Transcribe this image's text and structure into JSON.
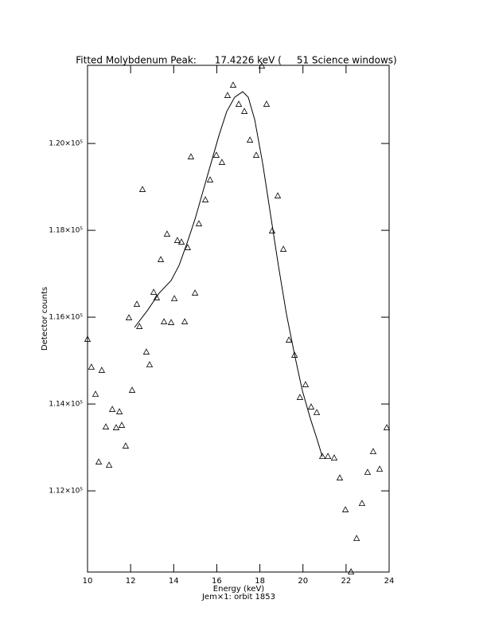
{
  "chart_data": {
    "type": "scatter",
    "title": "Fitted Molybdenum Peak:      17.4226 keV (     51 Science windows)",
    "xlabel": "Energy (keV)",
    "subtitle": "Jem×1: orbit 1853",
    "ylabel": "Detector counts",
    "xlim": [
      10,
      24
    ],
    "xticks": [
      10,
      12,
      14,
      16,
      18,
      20,
      22,
      24
    ],
    "ylim": [
      110130,
      121800
    ],
    "yticks": [
      {
        "value": 112000,
        "label": "1.12×10⁵"
      },
      {
        "value": 114000,
        "label": "1.14×10⁵"
      },
      {
        "value": 116000,
        "label": "1.16×10⁵"
      },
      {
        "value": 118000,
        "label": "1.18×10⁵"
      },
      {
        "value": 120000,
        "label": "1.20×10⁵"
      }
    ],
    "color": "#000000",
    "points": {
      "x": [
        10.0,
        10.18,
        10.37,
        10.52,
        10.66,
        10.85,
        11.0,
        11.15,
        11.33,
        11.48,
        11.59,
        11.77,
        11.92,
        12.07,
        12.29,
        12.41,
        12.55,
        12.73,
        12.88,
        13.07,
        13.21,
        13.4,
        13.55,
        13.69,
        13.88,
        14.03,
        14.17,
        14.36,
        14.51,
        14.65,
        14.8,
        14.99,
        15.17,
        15.47,
        15.69,
        15.98,
        16.24,
        16.5,
        16.76,
        17.02,
        17.28,
        17.54,
        17.83,
        18.09,
        18.31,
        18.57,
        18.83,
        19.09,
        19.35,
        19.61,
        19.86,
        20.12,
        20.38,
        20.64,
        20.9,
        21.16,
        21.45,
        21.71,
        21.97,
        22.23,
        22.49,
        22.74,
        23.0,
        23.26,
        23.56,
        23.89
      ],
      "y": [
        115487,
        114844,
        114220,
        112661,
        114771,
        113468,
        112587,
        113872,
        113450,
        113817,
        113505,
        113028,
        115982,
        114312,
        116294,
        115780,
        118936,
        115193,
        114899,
        116569,
        116441,
        117322,
        115890,
        117909,
        115872,
        116422,
        117762,
        117725,
        115890,
        117597,
        119689,
        116551,
        118147,
        118698,
        119157,
        119725,
        119560,
        121102,
        121340,
        120900,
        120735,
        120074,
        119725,
        121780,
        120900,
        117982,
        118790,
        117560,
        115468,
        115120,
        114147,
        114441,
        113927,
        113798,
        112789,
        112789,
        112752,
        112294,
        111560,
        110130,
        110899,
        111706,
        112422,
        112899,
        112495,
        113450
      ]
    },
    "fit": {
      "x": [
        12.18,
        12.77,
        13.32,
        13.88,
        14.25,
        14.62,
        14.99,
        15.36,
        15.73,
        16.1,
        16.46,
        16.83,
        17.2,
        17.46,
        17.76,
        18.13,
        18.5,
        18.87,
        19.24,
        19.61,
        19.97,
        20.34,
        20.64,
        20.9
      ],
      "y": [
        115763,
        116147,
        116551,
        116844,
        117193,
        117707,
        118257,
        118900,
        119542,
        120184,
        120735,
        121065,
        121193,
        121065,
        120551,
        119542,
        118349,
        117156,
        116055,
        115138,
        114312,
        113670,
        113211,
        112789
      ]
    }
  }
}
